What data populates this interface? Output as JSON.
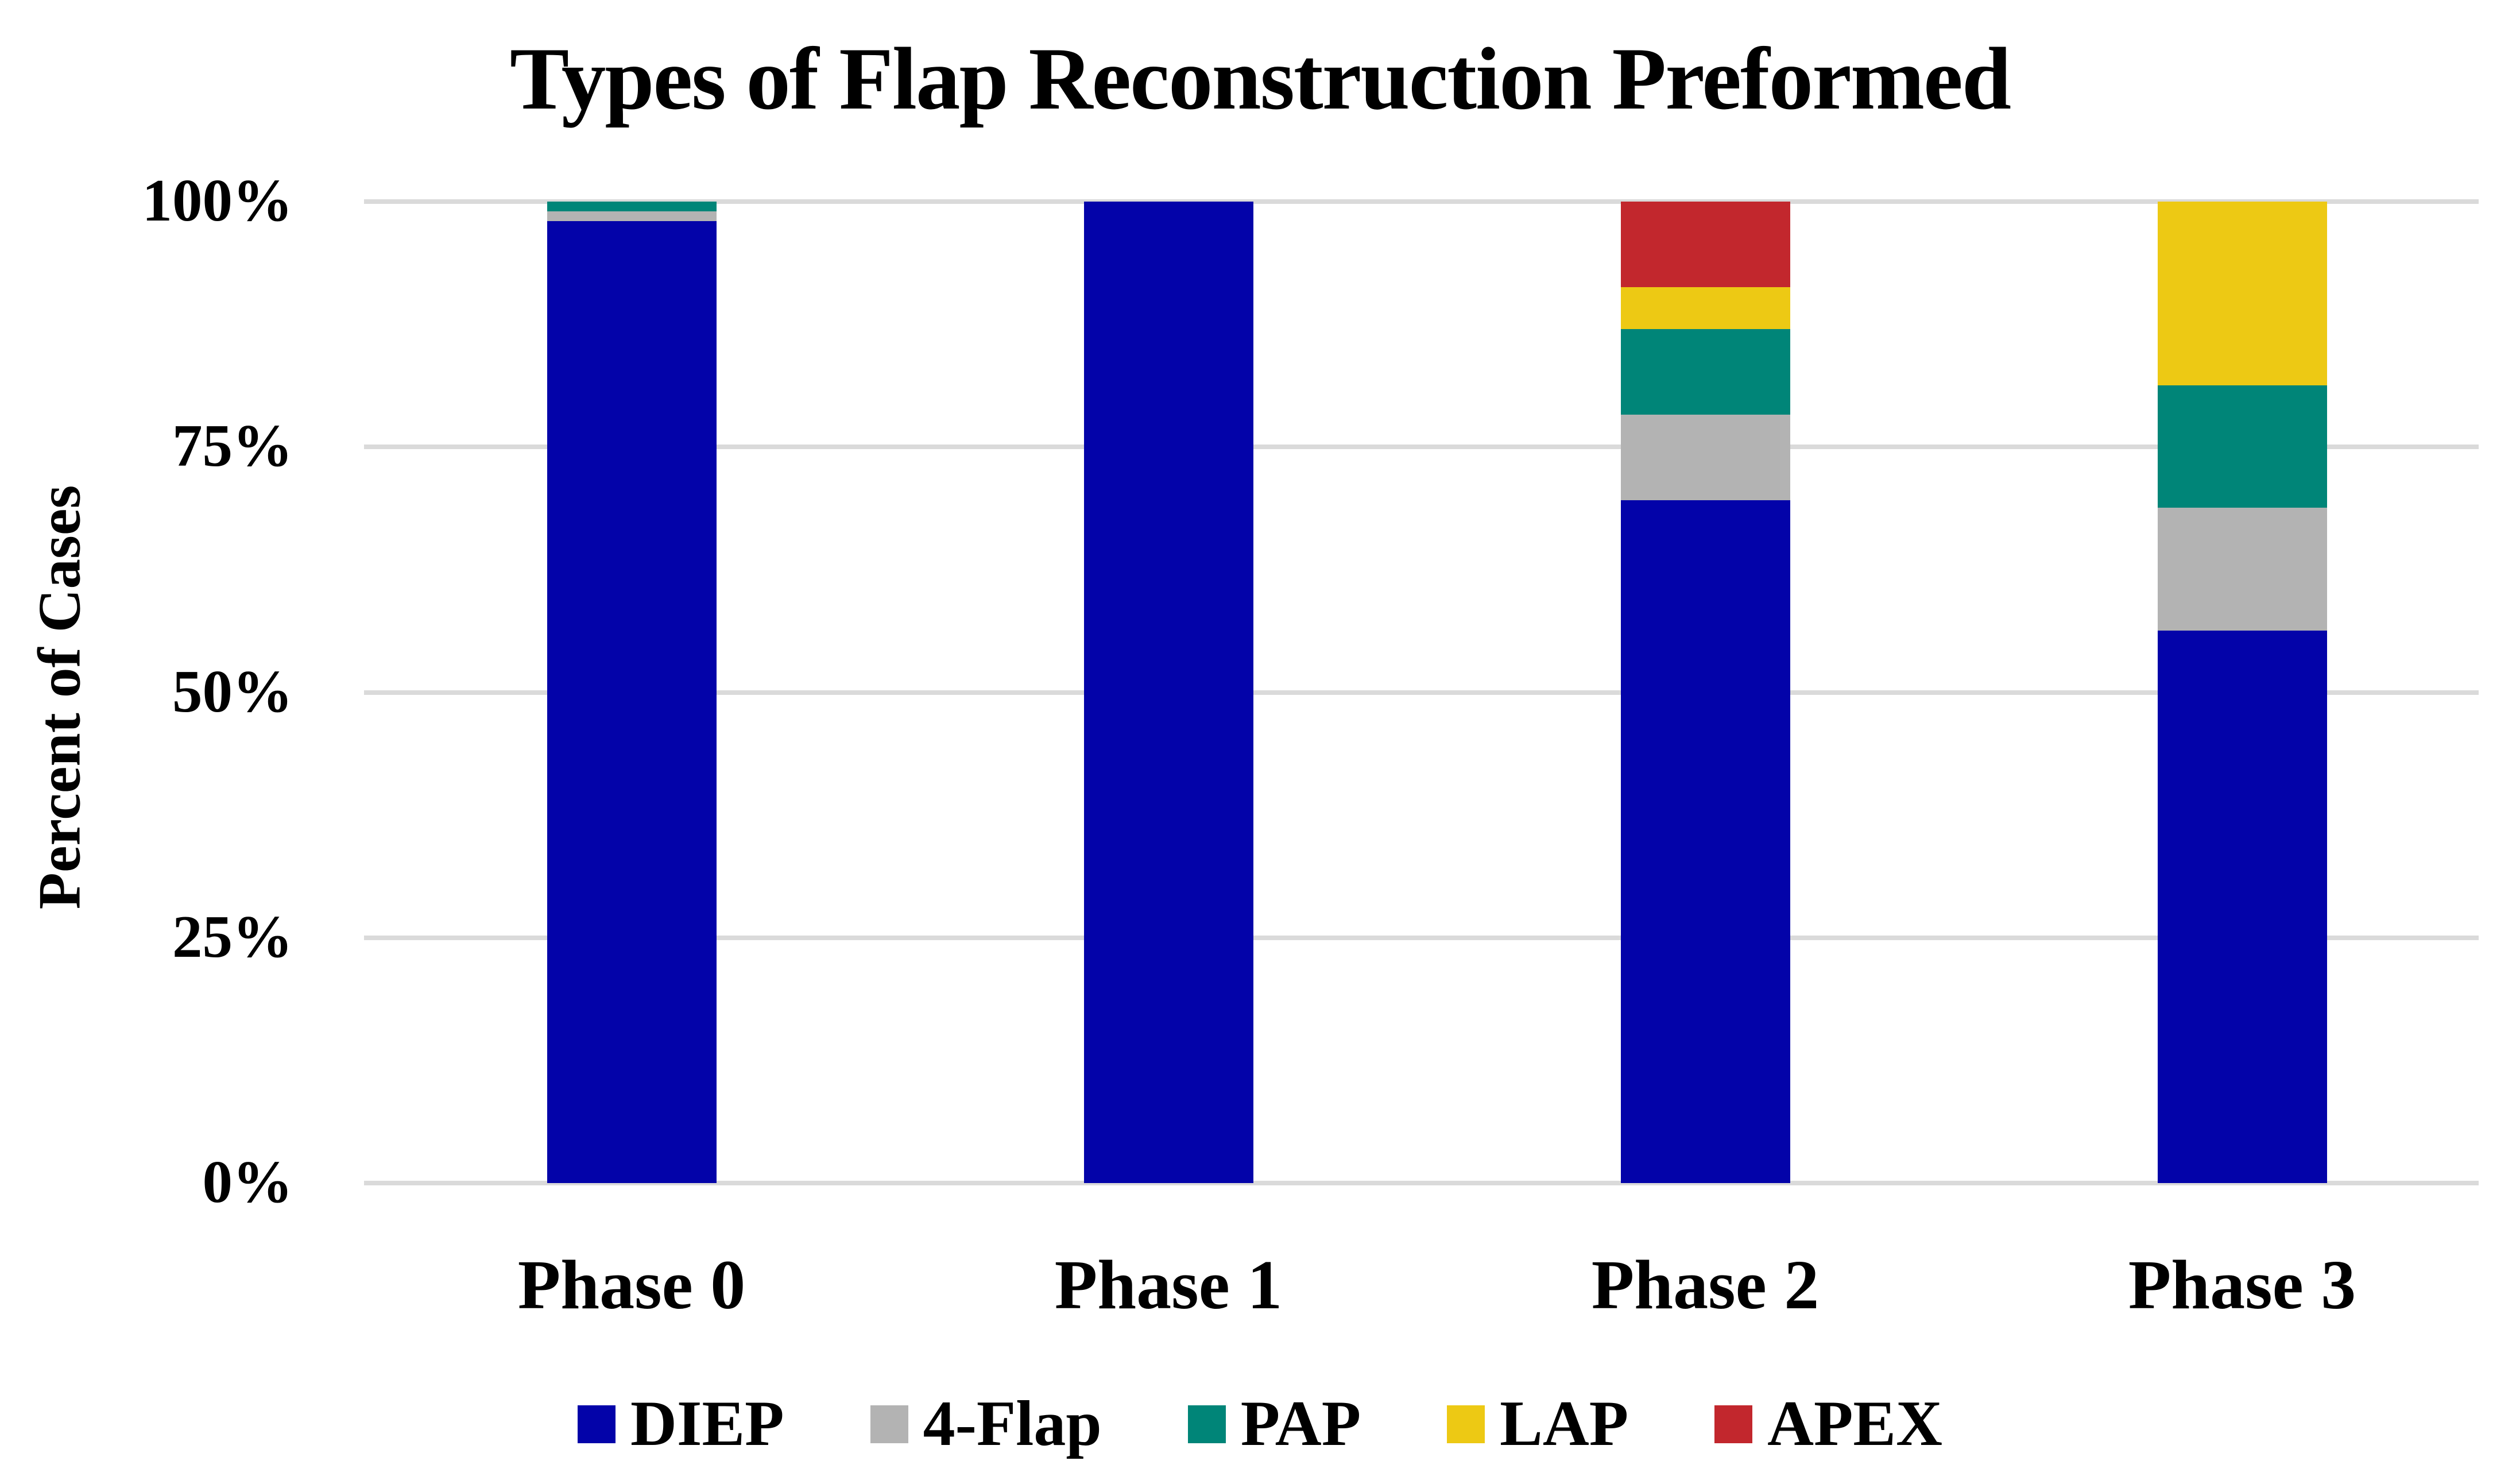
{
  "title": "Types of Flap Reconstruction Preformed",
  "colors": {
    "background": "#FFFFFF",
    "gridline": "#DADADA",
    "text": "#000000"
  },
  "chart_data": {
    "type": "bar",
    "stacked": true,
    "title": "Types of Flap Reconstruction Preformed",
    "xlabel": "",
    "ylabel": "Percent of Cases",
    "ylim": [
      0,
      100
    ],
    "grid": true,
    "legend_position": "bottom",
    "categories": [
      "Phase 0",
      "Phase 1",
      "Phase 2",
      "Phase 3"
    ],
    "yticks": [
      {
        "value": 0,
        "label": "0%"
      },
      {
        "value": 25,
        "label": "25%"
      },
      {
        "value": 50,
        "label": "50%"
      },
      {
        "value": 75,
        "label": "75%"
      },
      {
        "value": 100,
        "label": "100%"
      }
    ],
    "series": [
      {
        "name": "DIEP",
        "color": "#0303A9",
        "values": [
          98,
          100,
          69.6,
          56.3
        ]
      },
      {
        "name": "4-Flap",
        "color": "#B3B3B3",
        "values": [
          1,
          0,
          8.7,
          12.5
        ]
      },
      {
        "name": "PAP",
        "color": "#008578",
        "values": [
          1,
          0,
          8.7,
          12.5
        ]
      },
      {
        "name": "LAP",
        "color": "#EDC914",
        "values": [
          0,
          0,
          4.3,
          18.7
        ]
      },
      {
        "name": "APEX",
        "color": "#C2272D",
        "values": [
          0,
          0,
          8.7,
          0
        ]
      }
    ]
  }
}
